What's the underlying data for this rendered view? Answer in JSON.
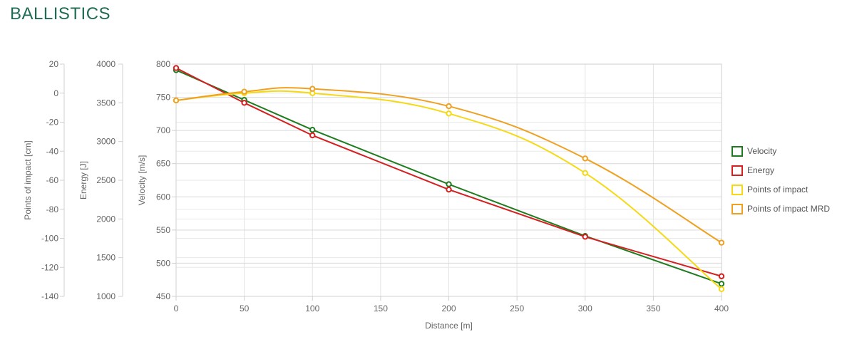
{
  "page": {
    "title": "BALLISTICS"
  },
  "chart_data": {
    "type": "line",
    "x": [
      0,
      50,
      100,
      200,
      300,
      400
    ],
    "xlabel": "Distance [m]",
    "xticks": [
      0,
      50,
      100,
      150,
      200,
      250,
      300,
      350,
      400
    ],
    "xlim": [
      0,
      400
    ],
    "grid": true,
    "legend_position": "right",
    "axes": [
      {
        "id": "velocity",
        "label": "Velocity [m/s]",
        "ylim": [
          450,
          800
        ],
        "ticks": [
          450,
          500,
          550,
          600,
          650,
          700,
          750,
          800
        ]
      },
      {
        "id": "energy",
        "label": "Energy [J]",
        "ylim": [
          1000,
          4000
        ],
        "ticks": [
          1000,
          1500,
          2000,
          2500,
          3000,
          3500,
          4000
        ]
      },
      {
        "id": "poi",
        "label": "Points of impact [cm]",
        "ylim": [
          -140,
          20
        ],
        "ticks": [
          -140,
          -120,
          -100,
          -80,
          -60,
          -40,
          -20,
          0,
          20
        ]
      }
    ],
    "series": [
      {
        "name": "Velocity",
        "axis": "velocity",
        "color": "#1e7b1e",
        "smooth": false,
        "values": [
          791,
          746,
          701,
          619,
          541,
          469
        ]
      },
      {
        "name": "Energy",
        "axis": "energy",
        "color": "#d42020",
        "smooth": false,
        "values": [
          3950,
          3500,
          3080,
          2380,
          1770,
          1260
        ]
      },
      {
        "name": "Points of impact",
        "axis": "poi",
        "color": "#f5d914",
        "smooth": true,
        "values": [
          -5,
          0,
          0,
          -14,
          -55,
          -135
        ]
      },
      {
        "name": "Points of impact MRD",
        "axis": "poi",
        "color": "#f0a020",
        "smooth": true,
        "values": [
          -5,
          1,
          3,
          -9,
          -45,
          -103
        ]
      }
    ]
  }
}
